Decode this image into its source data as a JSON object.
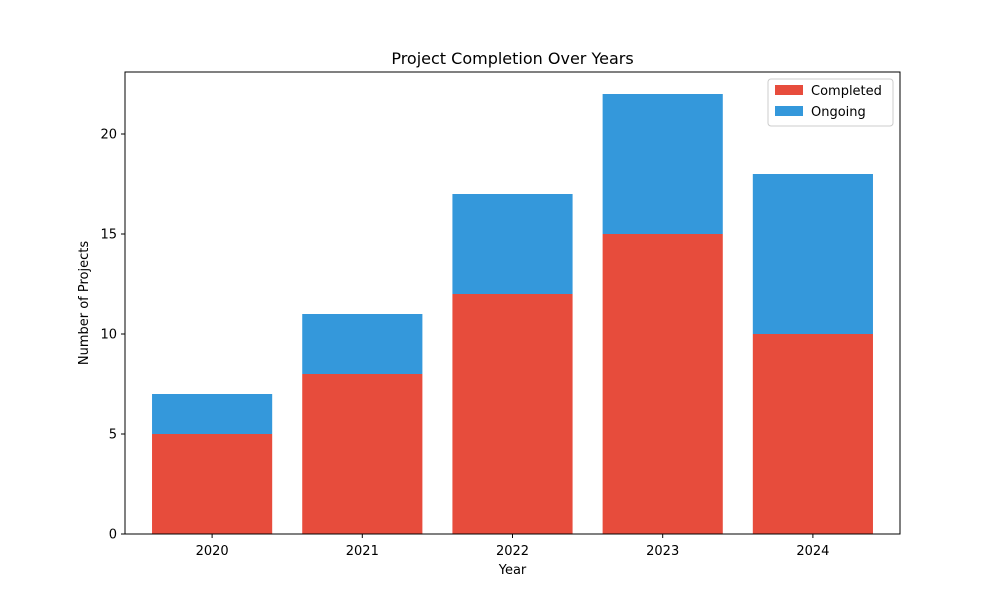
{
  "chart_data": {
    "type": "bar",
    "stacked": true,
    "title": "Project Completion Over Years",
    "xlabel": "Year",
    "ylabel": "Number of Projects",
    "categories": [
      "2020",
      "2021",
      "2022",
      "2023",
      "2024"
    ],
    "series": [
      {
        "name": "Completed",
        "color": "#e74c3c",
        "values": [
          5,
          8,
          12,
          15,
          10
        ]
      },
      {
        "name": "Ongoing",
        "color": "#3498db",
        "values": [
          2,
          3,
          5,
          7,
          8
        ]
      }
    ],
    "ylim": [
      0,
      23.1
    ],
    "yticks": [
      0,
      5,
      10,
      15,
      20
    ],
    "grid": false,
    "legend": "top-right"
  }
}
